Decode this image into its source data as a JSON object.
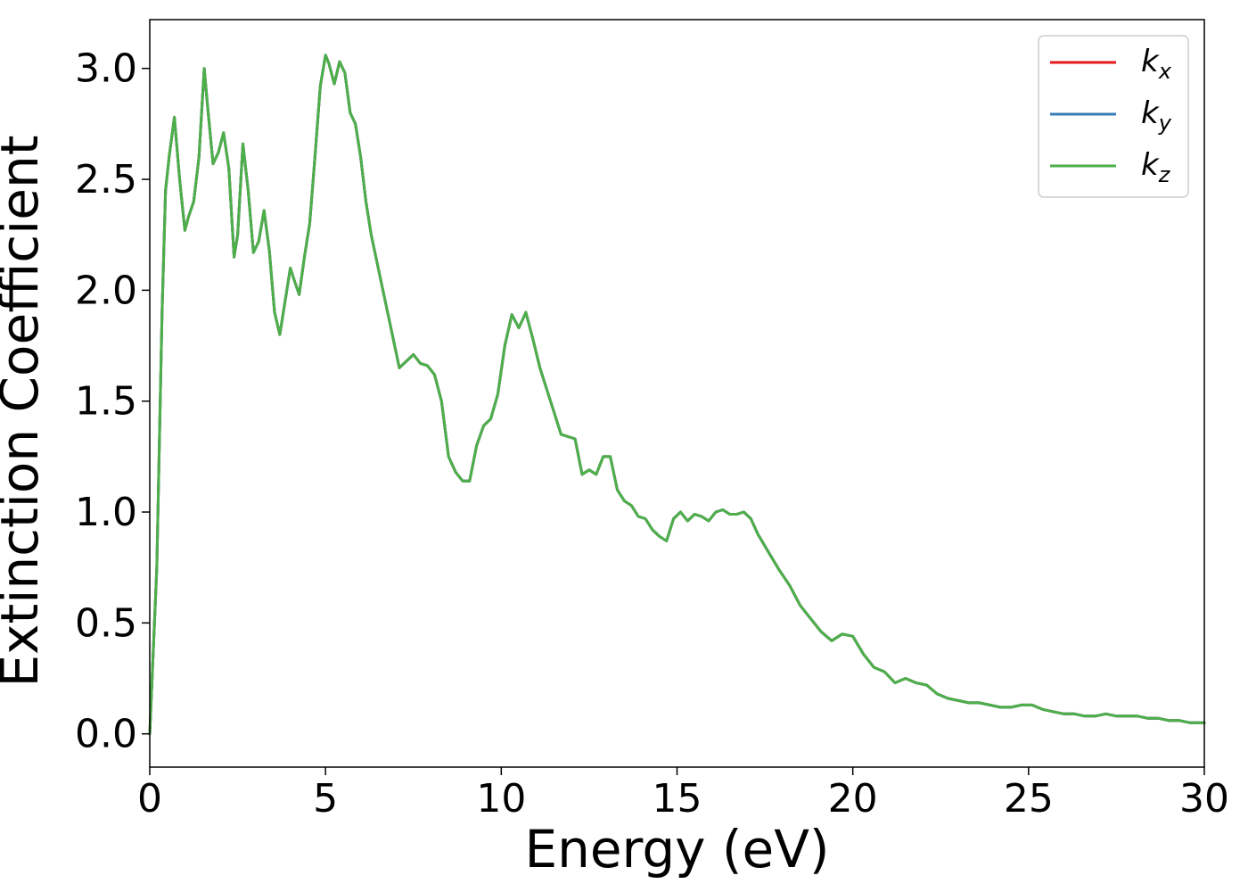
{
  "chart_data": {
    "type": "line",
    "xlabel": "Energy (eV)",
    "ylabel": "Extinction Coefficient",
    "xlim": [
      0,
      30
    ],
    "ylim": [
      -0.15,
      3.22
    ],
    "x_ticks": [
      0,
      5,
      10,
      15,
      20,
      25,
      30
    ],
    "y_ticks": [
      0.0,
      0.5,
      1.0,
      1.5,
      2.0,
      2.5,
      3.0
    ],
    "x_tick_labels": [
      "0",
      "5",
      "10",
      "15",
      "20",
      "25",
      "30"
    ],
    "y_tick_labels": [
      "0.0",
      "0.5",
      "1.0",
      "1.5",
      "2.0",
      "2.5",
      "3.0"
    ],
    "grid": false,
    "legend_position": "top-right",
    "x": [
      0,
      0.2,
      0.35,
      0.45,
      0.55,
      0.7,
      0.85,
      1.0,
      1.1,
      1.25,
      1.4,
      1.55,
      1.65,
      1.8,
      1.95,
      2.1,
      2.25,
      2.4,
      2.5,
      2.65,
      2.8,
      2.95,
      3.1,
      3.25,
      3.4,
      3.55,
      3.7,
      3.85,
      4.0,
      4.1,
      4.25,
      4.4,
      4.55,
      4.7,
      4.85,
      5.0,
      5.1,
      5.25,
      5.4,
      5.55,
      5.7,
      5.85,
      6.0,
      6.15,
      6.3,
      6.5,
      6.7,
      6.9,
      7.1,
      7.3,
      7.5,
      7.7,
      7.9,
      8.1,
      8.3,
      8.5,
      8.7,
      8.9,
      9.1,
      9.3,
      9.5,
      9.7,
      9.9,
      10.1,
      10.3,
      10.5,
      10.7,
      10.9,
      11.1,
      11.3,
      11.5,
      11.7,
      11.9,
      12.1,
      12.3,
      12.5,
      12.7,
      12.9,
      13.1,
      13.3,
      13.5,
      13.7,
      13.9,
      14.1,
      14.3,
      14.5,
      14.7,
      14.9,
      15.1,
      15.3,
      15.5,
      15.7,
      15.9,
      16.1,
      16.3,
      16.5,
      16.7,
      16.9,
      17.1,
      17.3,
      17.6,
      17.9,
      18.2,
      18.5,
      18.8,
      19.1,
      19.4,
      19.7,
      20.0,
      20.3,
      20.6,
      20.9,
      21.2,
      21.5,
      21.8,
      22.1,
      22.4,
      22.7,
      23.0,
      23.3,
      23.6,
      23.9,
      24.2,
      24.5,
      24.8,
      25.1,
      25.4,
      25.7,
      26.0,
      26.3,
      26.6,
      26.9,
      27.2,
      27.5,
      27.8,
      28.1,
      28.4,
      28.7,
      29.0,
      29.3,
      29.6,
      30.0
    ],
    "series": [
      {
        "name": "k_x",
        "color": "#e41a1c",
        "values": null
      },
      {
        "name": "k_y",
        "color": "#377eb8",
        "values": null
      },
      {
        "name": "k_z",
        "color": "#4daf4a",
        "values": [
          0.0,
          0.75,
          1.9,
          2.45,
          2.6,
          2.78,
          2.5,
          2.27,
          2.33,
          2.4,
          2.6,
          3.0,
          2.82,
          2.57,
          2.62,
          2.71,
          2.55,
          2.15,
          2.25,
          2.66,
          2.45,
          2.17,
          2.22,
          2.36,
          2.18,
          1.9,
          1.8,
          1.95,
          2.1,
          2.05,
          1.98,
          2.15,
          2.3,
          2.6,
          2.92,
          3.06,
          3.02,
          2.93,
          3.03,
          2.98,
          2.8,
          2.75,
          2.6,
          2.4,
          2.25,
          2.1,
          1.95,
          1.8,
          1.65,
          1.68,
          1.71,
          1.67,
          1.66,
          1.62,
          1.5,
          1.25,
          1.18,
          1.14,
          1.14,
          1.3,
          1.39,
          1.42,
          1.53,
          1.75,
          1.89,
          1.83,
          1.9,
          1.78,
          1.65,
          1.55,
          1.45,
          1.35,
          1.34,
          1.33,
          1.17,
          1.19,
          1.17,
          1.25,
          1.25,
          1.1,
          1.05,
          1.03,
          0.98,
          0.97,
          0.92,
          0.89,
          0.87,
          0.97,
          1.0,
          0.96,
          0.99,
          0.98,
          0.96,
          1.0,
          1.01,
          0.99,
          0.99,
          1.0,
          0.97,
          0.9,
          0.82,
          0.74,
          0.67,
          0.58,
          0.52,
          0.46,
          0.42,
          0.45,
          0.44,
          0.36,
          0.3,
          0.28,
          0.23,
          0.25,
          0.23,
          0.22,
          0.18,
          0.16,
          0.15,
          0.14,
          0.14,
          0.13,
          0.12,
          0.12,
          0.13,
          0.13,
          0.11,
          0.1,
          0.09,
          0.09,
          0.08,
          0.08,
          0.09,
          0.08,
          0.08,
          0.08,
          0.07,
          0.07,
          0.06,
          0.06,
          0.05,
          0.05
        ]
      }
    ]
  }
}
